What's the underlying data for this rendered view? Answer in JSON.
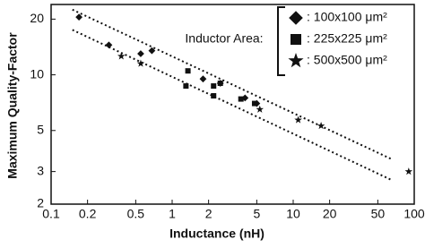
{
  "chart_data": {
    "type": "scatter",
    "xlabel": "Inductance (nH)",
    "ylabel": "Maximum Quality-Factor",
    "log_x": true,
    "log_y": true,
    "xlim": [
      0.1,
      100
    ],
    "ylim": [
      2,
      24
    ],
    "xticks": [
      0.1,
      0.2,
      0.5,
      1,
      2,
      5,
      10,
      20,
      50,
      100
    ],
    "yticks": [
      2,
      3,
      5,
      10,
      20
    ],
    "annotation": "Inductor Area:",
    "legend_position": "upper right",
    "series": [
      {
        "name": ": 100x100 μm²",
        "marker": "diamond",
        "color": "#111111",
        "x": [
          0.17,
          0.3,
          0.55,
          0.68,
          1.8,
          2.5,
          4.0,
          5.0
        ],
        "values": [
          20.5,
          14.5,
          13,
          13.5,
          9.5,
          9,
          7.5,
          7
        ]
      },
      {
        "name": ": 225x225 μm²",
        "marker": "square",
        "color": "#111111",
        "x": [
          1.35,
          1.3,
          2.2,
          2.5,
          2.2,
          3.7,
          4.8
        ],
        "values": [
          10.5,
          8.7,
          8.7,
          9,
          7.7,
          7.4,
          7
        ]
      },
      {
        "name": ": 500x500 μm²",
        "marker": "star",
        "color": "#111111",
        "x": [
          0.38,
          0.55,
          5.3,
          11,
          17,
          90
        ],
        "values": [
          12.6,
          11.5,
          6.5,
          5.7,
          5.3,
          3
        ]
      }
    ],
    "trend_lines": [
      {
        "x": [
          0.15,
          65
        ],
        "values": [
          22.5,
          3.5
        ]
      },
      {
        "x": [
          0.15,
          65
        ],
        "values": [
          17.5,
          2.7
        ]
      }
    ]
  }
}
